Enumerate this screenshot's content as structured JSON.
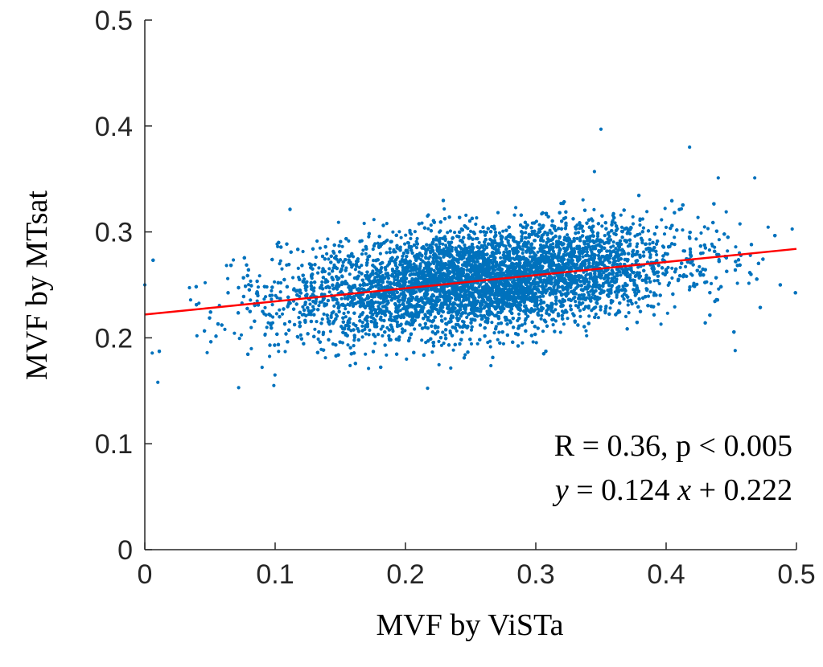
{
  "chart_data": {
    "type": "scatter",
    "xlabel": "MVF by ViSTa",
    "ylabel": "MVF by MTsat",
    "xlim": [
      0,
      0.5
    ],
    "ylim": [
      0,
      0.5
    ],
    "xticks": [
      "0",
      "0.1",
      "0.2",
      "0.3",
      "0.4",
      "0.5"
    ],
    "yticks": [
      "0",
      "0.1",
      "0.2",
      "0.3",
      "0.4",
      "0.5"
    ],
    "grid": false,
    "box": false,
    "colors": {
      "points": "#0072BD",
      "fit": "#FF0000",
      "axis": "#262626"
    },
    "point_cloud": {
      "approx_points": 15000,
      "x_mean": 0.26,
      "x_sd": 0.075,
      "y_mean": 0.254,
      "y_sd": 0.024,
      "outliers": [
        {
          "x": 0.35,
          "y": 0.397
        },
        {
          "x": 0.418,
          "y": 0.38
        },
        {
          "x": 0.345,
          "y": 0.357
        },
        {
          "x": 0.468,
          "y": 0.351
        },
        {
          "x": 0.44,
          "y": 0.351
        },
        {
          "x": 0.453,
          "y": 0.188
        },
        {
          "x": 0.072,
          "y": 0.153
        },
        {
          "x": 0.099,
          "y": 0.155
        },
        {
          "x": 0.01,
          "y": 0.158
        },
        {
          "x": 0.0,
          "y": 0.25
        }
      ]
    },
    "fit": {
      "slope": 0.124,
      "intercept": 0.222,
      "x_range": [
        0,
        0.5
      ]
    },
    "annotation": {
      "line1": "R = 0.36, p < 0.005",
      "line2_y": "y",
      "line2_mid": " = 0.124 ",
      "line2_x": "x",
      "line2_end": " + 0.222"
    }
  }
}
